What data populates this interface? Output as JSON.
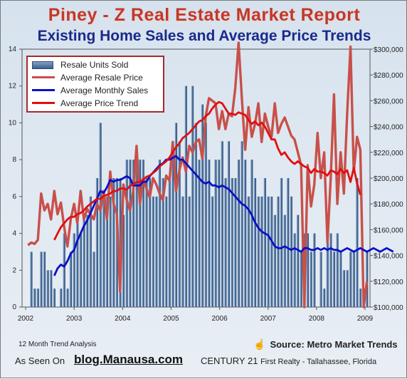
{
  "header": {
    "title": "Piney - Z Real Estate Market Report",
    "subtitle": "Existing Home Sales and Average Price Trends"
  },
  "legend": {
    "items": [
      {
        "label": "Resale Units Sold",
        "color": "#4a6f9c"
      },
      {
        "label": "Average Resale Price",
        "color": "#c8504a"
      },
      {
        "label": "Average Monthly Sales",
        "color": "#0a10c8"
      },
      {
        "label": "Average Price Trend",
        "color": "#e01010"
      }
    ]
  },
  "footer": {
    "note": "12 Month Trend Analysis",
    "source": "Source: Metro Market Trends",
    "seen_on": "As Seen On",
    "blog": "blog.Manausa.com",
    "brand_main": "CENTURY 21",
    "brand_tail": "First Realty - Tallahassee, Florida"
  },
  "chart_data": {
    "type": "bar",
    "x_ticks": [
      "2002",
      "2003",
      "2004",
      "2005",
      "2006",
      "2007",
      "2008",
      "2009"
    ],
    "y_left": {
      "min": 0,
      "max": 14,
      "ticks": [
        0,
        2,
        4,
        6,
        8,
        10,
        12,
        14
      ]
    },
    "y_right": {
      "min": 100000,
      "max": 300000,
      "ticks": [
        "$100,000",
        "$120,000",
        "$140,000",
        "$160,000",
        "$180,000",
        "$200,000",
        "$220,000",
        "$240,000",
        "$260,000",
        "$280,000",
        "$300,000"
      ]
    },
    "grid": false,
    "legend_position": "top-left",
    "series": [
      {
        "name": "Resale Units Sold",
        "type": "bar",
        "axis": "left",
        "color": "#4a6f9c",
        "values": [
          0,
          3,
          1,
          1,
          3,
          3,
          2,
          2,
          1,
          0,
          1,
          4,
          1,
          3,
          4,
          5,
          4,
          5,
          5,
          6,
          3,
          7,
          10,
          6,
          6,
          6,
          7,
          7,
          7,
          5,
          8,
          8,
          8,
          8,
          8,
          8,
          7,
          7,
          6,
          6,
          8,
          7,
          6,
          7,
          8,
          10,
          9,
          6,
          12,
          6,
          12,
          10,
          8,
          11,
          10,
          8,
          6,
          8,
          8,
          9,
          7,
          9,
          7,
          7,
          8,
          9,
          8,
          6,
          8,
          7,
          6,
          6,
          7,
          6,
          6,
          5,
          6,
          7,
          5,
          7,
          6,
          4,
          5,
          3,
          4,
          4,
          3,
          4,
          0,
          3,
          1,
          4,
          4,
          3,
          4,
          3,
          2,
          2,
          3,
          3,
          7,
          1,
          1,
          3
        ]
      },
      {
        "name": "Average Resale Price",
        "type": "line",
        "axis": "right",
        "color": "#c8504a",
        "values": [
          148000,
          150000,
          149000,
          152000,
          188000,
          175000,
          180000,
          168000,
          190000,
          172000,
          181000,
          162000,
          147000,
          168000,
          180000,
          165000,
          190000,
          168000,
          176000,
          172000,
          168000,
          180000,
          175000,
          190000,
          168000,
          205000,
          180000,
          172000,
          112000,
          195000,
          183000,
          175000,
          190000,
          225000,
          180000,
          200000,
          192000,
          185000,
          200000,
          195000,
          188000,
          183000,
          202000,
          198000,
          228000,
          190000,
          206000,
          216000,
          205000,
          225000,
          220000,
          228000,
          230000,
          215000,
          248000,
          262000,
          260000,
          258000,
          238000,
          252000,
          238000,
          250000,
          248000,
          270000,
          305000,
          262000,
          222000,
          255000,
          232000,
          242000,
          258000,
          228000,
          250000,
          240000,
          232000,
          258000,
          235000,
          242000,
          247000,
          240000,
          233000,
          230000,
          220000,
          210000,
          100000,
          210000,
          178000,
          195000,
          235000,
          200000,
          220000,
          150000,
          200000,
          265000,
          180000,
          220000,
          188000,
          250000,
          302000,
          205000,
          232000,
          222000,
          100000,
          120000
        ]
      },
      {
        "name": "Average Monthly Sales",
        "type": "line",
        "axis": "left",
        "color": "#0a10c8",
        "values": [
          1.7,
          2.1,
          2.3,
          2.2,
          2.5,
          2.9,
          3.1,
          3.6,
          4.0,
          4.4,
          4.7,
          5.1,
          5.5,
          5.9,
          6.3,
          6.2,
          6.5,
          6.9,
          6.8,
          6.9,
          6.9,
          7.0,
          7.1,
          7.0,
          6.6,
          6.6,
          6.6,
          6.8,
          6.8,
          7.1,
          7.3,
          7.5,
          7.7,
          7.8,
          8.0,
          8.0,
          8.1,
          8.2,
          8.0,
          8.0,
          7.8,
          7.6,
          7.4,
          7.2,
          7.0,
          6.8,
          6.7,
          6.8,
          6.6,
          6.6,
          6.5,
          6.6,
          6.5,
          6.4,
          6.2,
          6.0,
          5.8,
          5.6,
          5.5,
          5.3,
          5.0,
          4.6,
          4.3,
          4.1,
          4.0,
          3.9,
          3.6,
          3.3,
          3.2,
          3.2,
          3.3,
          3.2,
          3.1,
          3.2,
          3.1,
          3.0,
          3.2,
          3.2,
          3.1,
          3.1,
          3.2,
          3.1,
          3.2,
          3.1,
          3.2,
          3.1,
          3.1,
          3.0,
          3.1,
          3.2,
          3.1,
          3.0,
          3.1,
          3.2,
          3.1,
          3.0,
          3.1,
          3.2,
          3.1,
          3.0,
          3.1,
          3.2,
          3.1,
          3.0
        ],
        "note": "line starts at 2003"
      },
      {
        "name": "Average Price Trend",
        "type": "line",
        "axis": "right",
        "color": "#e01010",
        "values": [
          152000,
          157000,
          162000,
          165000,
          168000,
          170000,
          170000,
          172000,
          173000,
          175000,
          178000,
          180000,
          182000,
          184000,
          184000,
          186000,
          187000,
          188000,
          190000,
          190000,
          192000,
          192000,
          191000,
          194000,
          195000,
          197000,
          197000,
          199000,
          201000,
          202000,
          204000,
          206000,
          209000,
          211000,
          213000,
          216000,
          220000,
          224000,
          227000,
          231000,
          233000,
          235000,
          238000,
          241000,
          244000,
          245000,
          248000,
          250000,
          254000,
          257000,
          259000,
          258000,
          254000,
          250000,
          250000,
          249000,
          251000,
          250000,
          249000,
          245000,
          242000,
          244000,
          241000,
          243000,
          240000,
          235000,
          230000,
          230000,
          223000,
          218000,
          220000,
          216000,
          213000,
          211000,
          213000,
          211000,
          209000,
          208000,
          204000,
          207000,
          205000,
          205000,
          204000,
          202000,
          206000,
          205000,
          203000,
          207000,
          204000,
          206000,
          197000,
          208000,
          196000,
          187000
        ]
      }
    ]
  }
}
